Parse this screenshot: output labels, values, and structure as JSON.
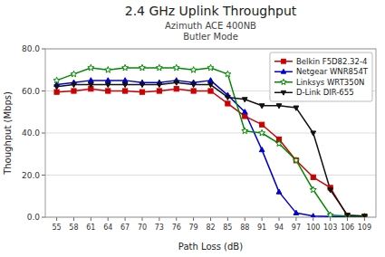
{
  "chart_data": {
    "type": "line",
    "title": "2.4 GHz Uplink Throughput",
    "subtitle": [
      "Azimuth ACE 400NB",
      "Butler Mode"
    ],
    "x_label": "Path Loss (dB)",
    "y_label": "Thoughput (Mbps)",
    "x": [
      55,
      58,
      61,
      64,
      67,
      70,
      73,
      76,
      79,
      82,
      85,
      88,
      91,
      94,
      97,
      100,
      103,
      106,
      109
    ],
    "xlim": [
      53,
      111
    ],
    "xticks": [
      55,
      58,
      61,
      64,
      67,
      70,
      73,
      76,
      79,
      82,
      85,
      88,
      91,
      94,
      97,
      100,
      103,
      106,
      109
    ],
    "ylim": [
      0.0,
      80.0
    ],
    "yticks": [
      {
        "value": 0.0,
        "label": "0.0"
      },
      {
        "value": 20.0,
        "label": "20.0"
      },
      {
        "value": 40.0,
        "label": "40.0"
      },
      {
        "value": 60.0,
        "label": "60.0"
      },
      {
        "value": 80.0,
        "label": "80.0"
      }
    ],
    "grid": "y",
    "legend": "upper right",
    "series": [
      {
        "name": "Belkin F5D82.32-4",
        "color": "#cc0000",
        "marker": "square",
        "values": [
          59.5,
          60.0,
          61.0,
          60.0,
          60.0,
          59.5,
          60.0,
          61.0,
          60.0,
          60.0,
          54.0,
          48.0,
          44.0,
          37.0,
          27.0,
          19.0,
          14.0,
          0.5,
          0.2
        ]
      },
      {
        "name": "Netgear WNR854T",
        "color": "#0000cc",
        "marker": "triangle-up",
        "values": [
          63.0,
          64.0,
          65.0,
          65.0,
          65.0,
          64.0,
          64.0,
          65.0,
          64.0,
          65.0,
          58.0,
          50.0,
          32.0,
          12.0,
          2.0,
          0.5,
          0.3,
          0.2,
          0.1
        ]
      },
      {
        "name": "Linksys WRT350N",
        "color": "#008800",
        "marker": "star",
        "values": [
          65.0,
          68.0,
          71.0,
          70.0,
          71.0,
          71.0,
          71.0,
          71.0,
          70.0,
          71.0,
          68.0,
          41.0,
          40.0,
          35.0,
          27.0,
          13.0,
          1.0,
          0.5,
          0.3
        ]
      },
      {
        "name": "D-Link DIR-655",
        "color": "#111111",
        "marker": "triangle-down",
        "values": [
          62.0,
          63.0,
          63.0,
          63.0,
          63.0,
          63.0,
          63.0,
          64.0,
          63.0,
          63.0,
          57.0,
          56.0,
          53.0,
          53.0,
          52.0,
          40.0,
          13.0,
          1.0,
          0.5
        ]
      }
    ]
  }
}
